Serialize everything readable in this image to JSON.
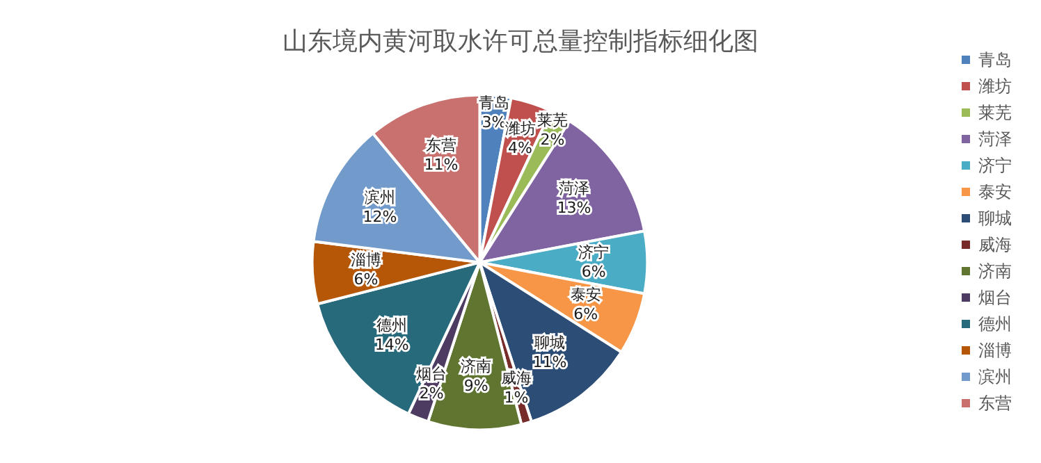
{
  "chart_data": {
    "type": "pie",
    "title": "山东境内黄河取水许可总量控制指标细化图",
    "categories": [
      "青岛",
      "潍坊",
      "莱芜",
      "菏泽",
      "济宁",
      "泰安",
      "聊城",
      "威海",
      "济南",
      "烟台",
      "德州",
      "淄博",
      "滨州",
      "东营"
    ],
    "values": [
      3,
      4,
      2,
      13,
      6,
      6,
      11,
      1,
      9,
      2,
      14,
      6,
      12,
      11
    ],
    "colors": [
      "#4f81bd",
      "#c0504d",
      "#9bbb59",
      "#8064a2",
      "#4bacc6",
      "#f79646",
      "#2c4d75",
      "#772c2a",
      "#5f7530",
      "#4d3b62",
      "#276a7c",
      "#b65708",
      "#729aca",
      "#c9716f"
    ],
    "value_labels": [
      "3%",
      "4%",
      "2%",
      "13%",
      "6%",
      "6%",
      "11%",
      "1%",
      "9%",
      "2%",
      "14%",
      "6%",
      "12%",
      "11%"
    ],
    "legend": "right"
  }
}
